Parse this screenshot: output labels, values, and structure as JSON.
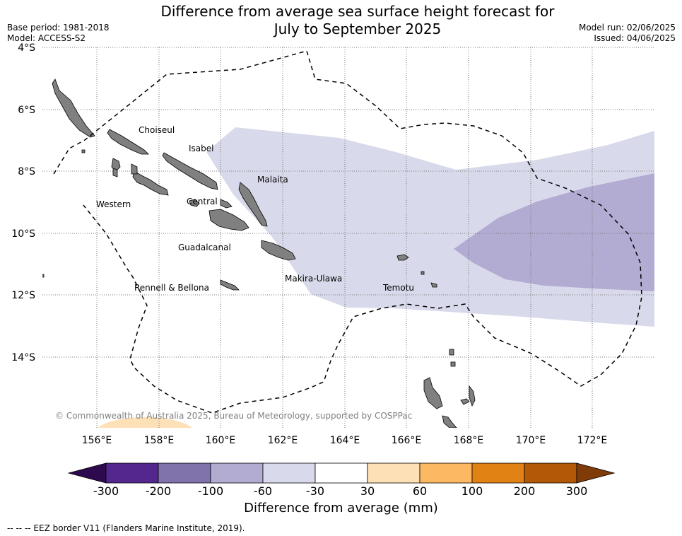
{
  "title": {
    "line1": "Difference from average sea surface height forecast for",
    "line2": "July to September 2025"
  },
  "meta": {
    "base_period": "Base period: 1981-2018",
    "model": "Model: ACCESS-S2",
    "model_run": "Model run: 02/06/2025",
    "issued": "Issued: 04/06/2025"
  },
  "axes": {
    "lat_labels": [
      "4°S",
      "6°S",
      "8°S",
      "10°S",
      "12°S",
      "14°S"
    ],
    "lon_labels": [
      "156°E",
      "158°E",
      "160°E",
      "162°E",
      "164°E",
      "166°E",
      "168°E",
      "170°E",
      "172°E"
    ]
  },
  "province_labels": {
    "choiseul": "Choiseul",
    "isabel": "Isabel",
    "malaita": "Malaita",
    "western": "Western",
    "central": "Central",
    "guadalcanal": "Guadalcanal",
    "makira_ulawa": "Makira-Ulawa",
    "rennell_bellona": "Rennell & Bellona",
    "temotu": "Temotu"
  },
  "copyright": "© Commonwealth of Australia 2025, Bureau of Meteorology, supported by COSPPac",
  "colorbar": {
    "title": "Difference from average (mm)",
    "ticks": [
      "-300",
      "-200",
      "-100",
      "-60",
      "-30",
      "30",
      "60",
      "100",
      "200",
      "300"
    ],
    "colors": {
      "under": "#2d0a4e",
      "c1": "#54278f",
      "c2": "#8073ac",
      "c3": "#b2abd2",
      "c4": "#d8daeb",
      "c5": "#ffffff",
      "c6": "#fee0b6",
      "c7": "#fdb863",
      "c8": "#e08214",
      "c9": "#b35806",
      "over": "#7f3b08"
    }
  },
  "legend": {
    "eez": "--  --  -- EEZ border V11 (Flanders Marine Institute, 2019)."
  }
}
